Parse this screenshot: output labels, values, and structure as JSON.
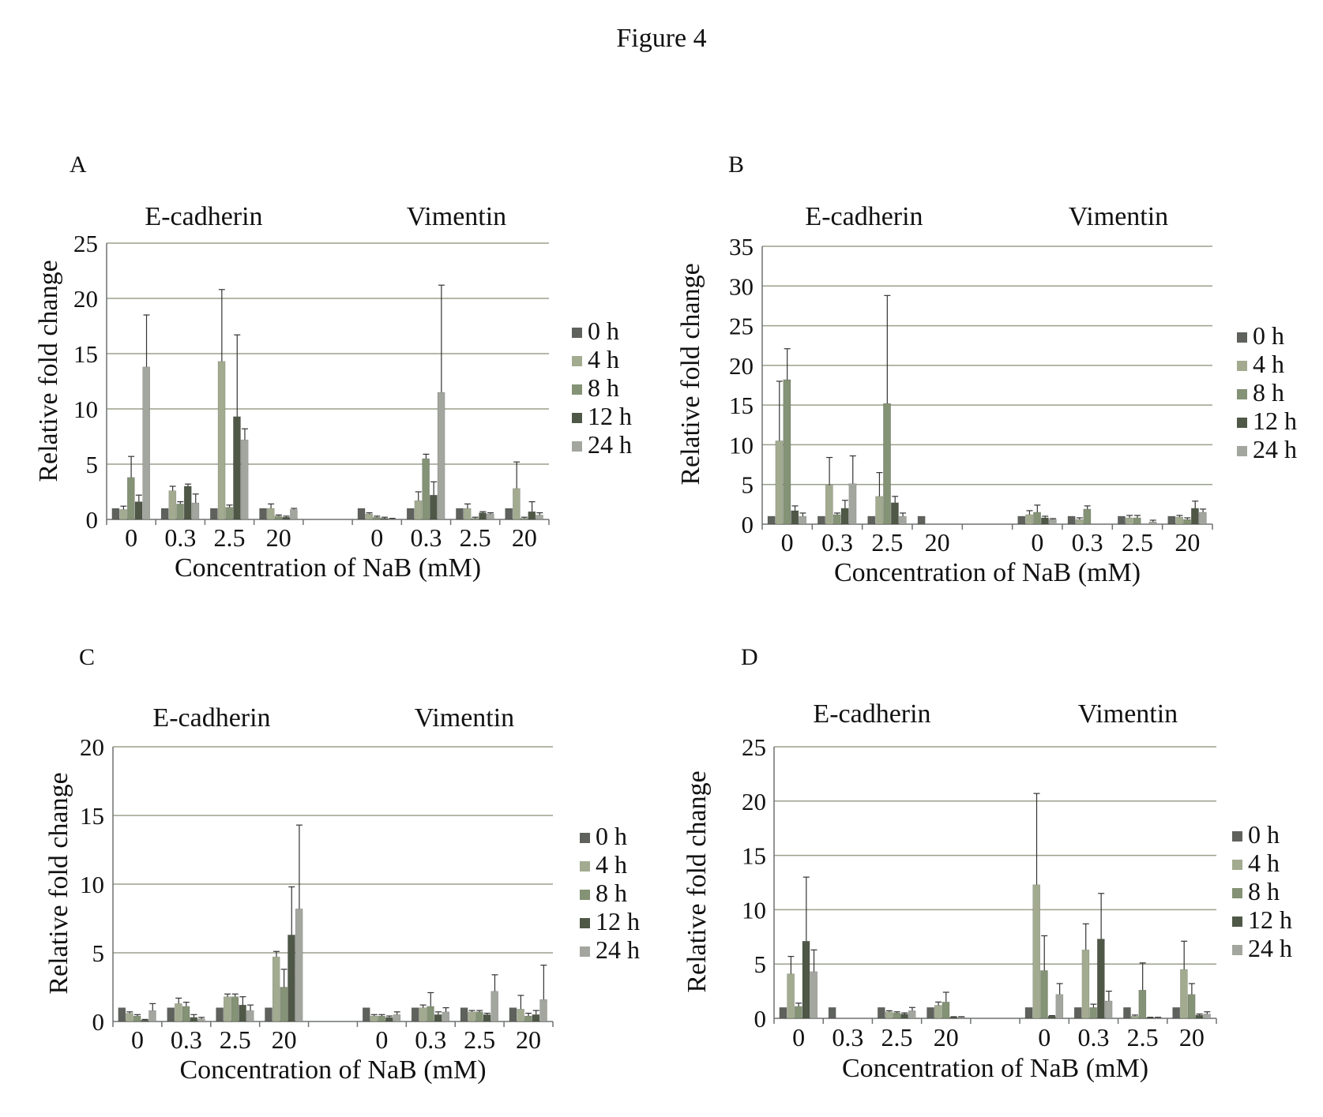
{
  "figure_title": "Figure 4",
  "colors": {
    "series": [
      "#5e615c",
      "#a2ab90",
      "#849275",
      "#4f5847",
      "#a3a69e"
    ],
    "grid": "#9aa08c",
    "axis": "#6f7270",
    "error_bar": "#333333"
  },
  "chart_data": [
    {
      "panel": "A",
      "type": "bar",
      "group_labels": [
        "E-cadherin",
        "Vimentin"
      ],
      "categories": [
        "0",
        "0.3",
        "2.5",
        "20",
        "0",
        "0.3",
        "2.5",
        "20"
      ],
      "xlabel": "Concentration of NaB (mM)",
      "ylabel": "Relative fold change",
      "ylim": [
        0,
        25
      ],
      "yticks": [
        0,
        5,
        10,
        15,
        20,
        25
      ],
      "grid": true,
      "legend": "right",
      "series": [
        {
          "name": "0 h",
          "values": [
            1,
            1,
            1,
            1,
            1,
            1,
            1,
            1
          ],
          "errors": [
            0,
            0,
            0,
            0,
            0,
            0,
            0,
            0
          ]
        },
        {
          "name": "4 h",
          "values": [
            0.9,
            2.6,
            14.3,
            1.0,
            0.5,
            1.7,
            1.0,
            2.8
          ],
          "errors": [
            0.3,
            0.4,
            6.5,
            0.4,
            0.1,
            0.8,
            0.4,
            2.4
          ]
        },
        {
          "name": "8 h",
          "values": [
            3.8,
            1.4,
            1.1,
            0.3,
            0.2,
            5.5,
            0.1,
            0.1
          ],
          "errors": [
            1.9,
            0.2,
            0.2,
            0.1,
            0.1,
            0.4,
            0.1,
            0.1
          ]
        },
        {
          "name": "12 h",
          "values": [
            1.6,
            3.0,
            9.3,
            0.2,
            0.1,
            2.2,
            0.6,
            0.7
          ],
          "errors": [
            0.6,
            0.2,
            7.4,
            0.1,
            0.1,
            1.2,
            0.1,
            0.9
          ]
        },
        {
          "name": "24 h",
          "values": [
            13.8,
            1.5,
            7.2,
            0.9,
            0.05,
            11.5,
            0.5,
            0.4
          ],
          "errors": [
            4.7,
            0.8,
            1.0,
            0.1,
            0.05,
            9.7,
            0.1,
            0.2
          ]
        }
      ]
    },
    {
      "panel": "B",
      "type": "bar",
      "group_labels": [
        "E-cadherin",
        "Vimentin"
      ],
      "categories": [
        "0",
        "0.3",
        "2.5",
        "20",
        "0",
        "0.3",
        "2.5",
        "20"
      ],
      "xlabel": "Concentration of NaB (mM)",
      "ylabel": "Relative fold change",
      "ylim": [
        0,
        35
      ],
      "yticks": [
        0,
        5,
        10,
        15,
        20,
        25,
        30,
        35
      ],
      "grid": true,
      "legend": "right",
      "series": [
        {
          "name": "0 h",
          "values": [
            1,
            1,
            1,
            1,
            1,
            1,
            1,
            1
          ],
          "errors": [
            0,
            0,
            0,
            0,
            0,
            0,
            0,
            0
          ]
        },
        {
          "name": "4 h",
          "values": [
            10.5,
            4.9,
            3.5,
            0,
            1.2,
            0.6,
            0.8,
            0.9
          ],
          "errors": [
            7.5,
            3.5,
            3.0,
            0,
            0.5,
            0.2,
            0.3,
            0.2
          ]
        },
        {
          "name": "8 h",
          "values": [
            18.2,
            1.2,
            15.2,
            0,
            1.5,
            1.9,
            0.8,
            0.6
          ],
          "errors": [
            3.9,
            0.2,
            13.6,
            0,
            0.9,
            0.4,
            0.3,
            0.2
          ]
        },
        {
          "name": "12 h",
          "values": [
            1.7,
            2.0,
            2.7,
            0,
            0.8,
            0,
            0,
            2.0
          ],
          "errors": [
            0.6,
            1.0,
            0.8,
            0,
            0.2,
            0,
            0,
            0.9
          ]
        },
        {
          "name": "24 h",
          "values": [
            1.0,
            5.1,
            1.0,
            0,
            0.6,
            0,
            0.3,
            1.5
          ],
          "errors": [
            0.4,
            3.5,
            0.4,
            0,
            0.1,
            0,
            0.2,
            0.4
          ]
        }
      ]
    },
    {
      "panel": "C",
      "type": "bar",
      "group_labels": [
        "E-cadherin",
        "Vimentin"
      ],
      "categories": [
        "0",
        "0.3",
        "2.5",
        "20",
        "0",
        "0.3",
        "2.5",
        "20"
      ],
      "xlabel": "Concentration of NaB (mM)",
      "ylabel": "Relative fold change",
      "ylim": [
        0,
        20
      ],
      "yticks": [
        0,
        5,
        10,
        15,
        20
      ],
      "grid": true,
      "legend": "right",
      "series": [
        {
          "name": "0 h",
          "values": [
            1,
            1,
            1,
            1,
            1,
            1,
            1,
            1
          ],
          "errors": [
            0,
            0,
            0,
            0,
            0,
            0,
            0,
            0
          ]
        },
        {
          "name": "4 h",
          "values": [
            0.6,
            1.3,
            1.8,
            4.7,
            0.4,
            1.0,
            0.7,
            0.9
          ],
          "errors": [
            0.1,
            0.4,
            0.2,
            0.4,
            0.1,
            0.2,
            0.1,
            1.0
          ]
        },
        {
          "name": "8 h",
          "values": [
            0.4,
            1.1,
            1.8,
            2.5,
            0.4,
            1.1,
            0.7,
            0.4
          ],
          "errors": [
            0.1,
            0.3,
            0.2,
            1.3,
            0.1,
            1.0,
            0.1,
            0.2
          ]
        },
        {
          "name": "12 h",
          "values": [
            0.1,
            0.3,
            1.2,
            6.3,
            0.3,
            0.5,
            0.5,
            0.5
          ],
          "errors": [
            0.05,
            0.2,
            0.6,
            3.5,
            0.1,
            0.2,
            0.1,
            0.3
          ]
        },
        {
          "name": "24 h",
          "values": [
            0.8,
            0.2,
            0.8,
            8.2,
            0.5,
            0.7,
            2.2,
            1.6
          ],
          "errors": [
            0.5,
            0.1,
            0.4,
            6.1,
            0.2,
            0.3,
            1.2,
            2.5
          ]
        }
      ]
    },
    {
      "panel": "D",
      "type": "bar",
      "group_labels": [
        "E-cadherin",
        "Vimentin"
      ],
      "categories": [
        "0",
        "0.3",
        "2.5",
        "20",
        "0",
        "0.3",
        "2.5",
        "20"
      ],
      "xlabel": "Concentration of NaB (mM)",
      "ylabel": "Relative fold change",
      "ylim": [
        0,
        25
      ],
      "yticks": [
        0,
        5,
        10,
        15,
        20,
        25
      ],
      "grid": true,
      "legend": "right",
      "series": [
        {
          "name": "0 h",
          "values": [
            1,
            1,
            1,
            1,
            1,
            1,
            1,
            1
          ],
          "errors": [
            0,
            0,
            0,
            0,
            0,
            0,
            0,
            0
          ]
        },
        {
          "name": "4 h",
          "values": [
            4.1,
            0,
            0.6,
            1.2,
            12.3,
            6.3,
            0.2,
            4.5
          ],
          "errors": [
            1.6,
            0,
            0.1,
            0.3,
            8.4,
            2.4,
            0.1,
            2.6
          ]
        },
        {
          "name": "8 h",
          "values": [
            1.1,
            0,
            0.5,
            1.5,
            4.4,
            1.0,
            2.6,
            2.2
          ],
          "errors": [
            0.3,
            0,
            0.1,
            0.9,
            3.2,
            0.3,
            2.5,
            1.0
          ]
        },
        {
          "name": "12 h",
          "values": [
            7.1,
            0,
            0.4,
            0.1,
            0.2,
            7.3,
            0.05,
            0.3
          ],
          "errors": [
            5.9,
            0,
            0.1,
            0.05,
            0.05,
            4.2,
            0.05,
            0.1
          ]
        },
        {
          "name": "24 h",
          "values": [
            4.3,
            0,
            0.7,
            0.1,
            2.2,
            1.6,
            0.05,
            0.4
          ],
          "errors": [
            2.0,
            0,
            0.3,
            0.05,
            1.0,
            0.9,
            0.05,
            0.2
          ]
        }
      ]
    }
  ]
}
